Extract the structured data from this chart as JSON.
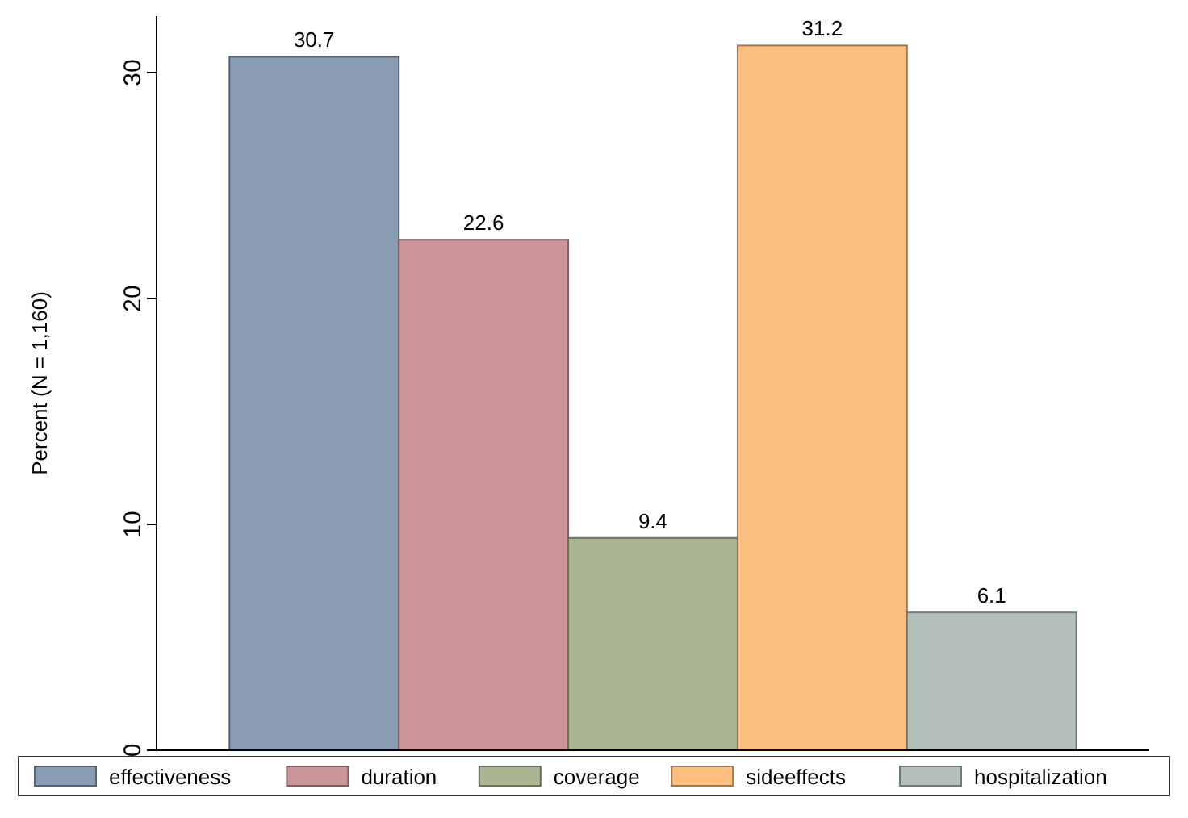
{
  "chart_data": {
    "type": "bar",
    "ylabel": "Percent (N = 1,160)",
    "categories": [
      null
    ],
    "series": [
      {
        "name": "effectiveness",
        "color": "#8b9db5",
        "values": [
          30.7
        ]
      },
      {
        "name": "duration",
        "color": "#cc9699",
        "values": [
          22.6
        ]
      },
      {
        "name": "coverage",
        "color": "#a8b590",
        "values": [
          9.4
        ]
      },
      {
        "name": "sideeffects",
        "color": "#fdbf80",
        "values": [
          31.2
        ]
      },
      {
        "name": "hospitalization",
        "color": "#b3c0b9",
        "values": [
          6.1
        ]
      }
    ],
    "ylim": [
      0,
      32.5
    ],
    "yticks": [
      0,
      10,
      20,
      30
    ],
    "data_labels": true,
    "legend": "bottom",
    "grid": false
  }
}
